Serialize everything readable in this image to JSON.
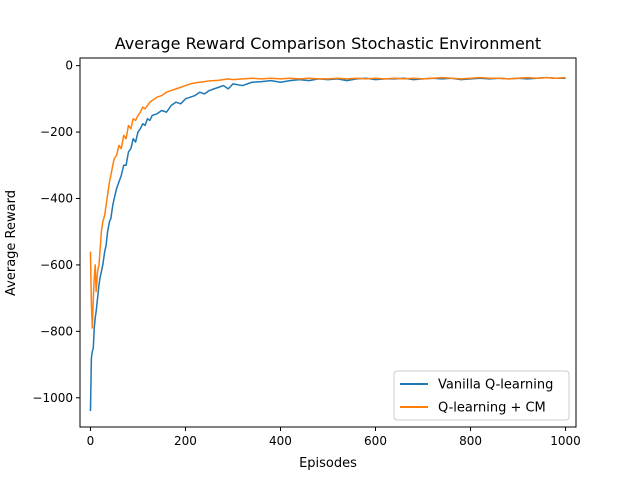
{
  "chart_data": {
    "type": "line",
    "title": "Average Reward Comparison Stochastic Environment",
    "xlabel": "Episodes",
    "ylabel": "Average Reward",
    "xlim": [
      -22,
      1022
    ],
    "ylim": [
      -1088,
      23
    ],
    "x_ticks": [
      0,
      200,
      400,
      600,
      800,
      1000
    ],
    "y_ticks": [
      0,
      -200,
      -400,
      -600,
      -800,
      -1000
    ],
    "grid": false,
    "legend_position": "lower-right",
    "series": [
      {
        "name": "Vanilla Q-learning",
        "color": "#1f77b4",
        "x": [
          0,
          2,
          4,
          6,
          8,
          10,
          12,
          15,
          18,
          20,
          23,
          26,
          30,
          33,
          36,
          40,
          43,
          47,
          50,
          55,
          60,
          65,
          70,
          75,
          80,
          85,
          90,
          95,
          100,
          105,
          110,
          115,
          120,
          125,
          130,
          140,
          150,
          160,
          170,
          180,
          190,
          200,
          210,
          220,
          230,
          240,
          250,
          260,
          270,
          280,
          290,
          300,
          320,
          340,
          360,
          380,
          400,
          420,
          440,
          460,
          480,
          500,
          520,
          540,
          560,
          580,
          600,
          620,
          640,
          660,
          680,
          700,
          720,
          740,
          760,
          780,
          800,
          820,
          840,
          860,
          880,
          900,
          920,
          940,
          960,
          980,
          1000
        ],
        "y": [
          -1040,
          -880,
          -860,
          -850,
          -790,
          -760,
          -740,
          -700,
          -660,
          -640,
          -620,
          -600,
          -560,
          -540,
          -500,
          -470,
          -460,
          -420,
          -400,
          -370,
          -350,
          -330,
          -300,
          -300,
          -260,
          -250,
          -220,
          -230,
          -200,
          -190,
          -175,
          -180,
          -160,
          -165,
          -150,
          -145,
          -135,
          -140,
          -120,
          -110,
          -115,
          -100,
          -95,
          -90,
          -80,
          -85,
          -75,
          -70,
          -65,
          -60,
          -70,
          -55,
          -60,
          -50,
          -48,
          -45,
          -50,
          -45,
          -42,
          -45,
          -40,
          -42,
          -40,
          -45,
          -40,
          -38,
          -42,
          -40,
          -40,
          -38,
          -42,
          -40,
          -38,
          -40,
          -38,
          -42,
          -40,
          -38,
          -40,
          -38,
          -40,
          -38,
          -40,
          -38,
          -36,
          -38,
          -38
        ]
      },
      {
        "name": "Q-learning + CM",
        "color": "#ff7f0e",
        "x": [
          0,
          2,
          4,
          6,
          8,
          10,
          12,
          15,
          18,
          20,
          23,
          26,
          30,
          33,
          36,
          40,
          43,
          47,
          50,
          55,
          60,
          65,
          70,
          75,
          80,
          85,
          90,
          95,
          100,
          105,
          110,
          115,
          120,
          125,
          130,
          140,
          150,
          160,
          170,
          180,
          190,
          200,
          210,
          220,
          230,
          240,
          250,
          260,
          270,
          280,
          290,
          300,
          320,
          340,
          360,
          380,
          400,
          420,
          440,
          460,
          480,
          500,
          520,
          540,
          560,
          580,
          600,
          620,
          640,
          660,
          680,
          700,
          720,
          740,
          760,
          780,
          800,
          820,
          840,
          860,
          880,
          900,
          920,
          940,
          960,
          980,
          1000
        ],
        "y": [
          -560,
          -720,
          -790,
          -700,
          -640,
          -600,
          -680,
          -620,
          -600,
          -560,
          -500,
          -470,
          -450,
          -420,
          -390,
          -350,
          -330,
          -300,
          -280,
          -270,
          -240,
          -250,
          -210,
          -220,
          -180,
          -190,
          -160,
          -165,
          -150,
          -140,
          -125,
          -130,
          -120,
          -110,
          -105,
          -95,
          -90,
          -80,
          -75,
          -70,
          -65,
          -60,
          -55,
          -52,
          -50,
          -48,
          -46,
          -45,
          -44,
          -42,
          -40,
          -42,
          -40,
          -38,
          -40,
          -38,
          -40,
          -38,
          -40,
          -38,
          -40,
          -40,
          -38,
          -40,
          -38,
          -40,
          -38,
          -40,
          -38,
          -40,
          -38,
          -40,
          -38,
          -36,
          -38,
          -40,
          -38,
          -36,
          -38,
          -38,
          -40,
          -38,
          -36,
          -38,
          -36,
          -38,
          -36
        ]
      }
    ]
  }
}
